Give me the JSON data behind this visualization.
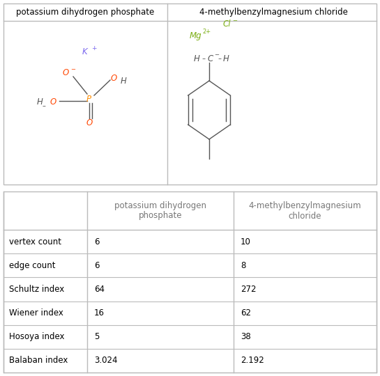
{
  "col1_header": "potassium dihydrogen phosphate",
  "col2_header": "4-methylbenzylmagnesium chloride",
  "table_col1_header": "potassium dihydrogen\nphosphate",
  "table_col2_header": "4-methylbenzylmagnesium\nchloride",
  "rows": [
    {
      "label": "vertex count",
      "val1": "6",
      "val2": "10"
    },
    {
      "label": "edge count",
      "val1": "6",
      "val2": "8"
    },
    {
      "label": "Schultz index",
      "val1": "64",
      "val2": "272"
    },
    {
      "label": "Wiener index",
      "val1": "16",
      "val2": "62"
    },
    {
      "label": "Hosoya index",
      "val1": "5",
      "val2": "38"
    },
    {
      "label": "Balaban index",
      "val1": "3.024",
      "val2": "2.192"
    }
  ],
  "bg_color": "#ffffff",
  "border_color": "#bbbbbb",
  "text_color": "#000000",
  "gray_text": "#555555",
  "K_color": "#7b68ee",
  "P_color": "#ff8c00",
  "O_color": "#ff4500",
  "Cl_color": "#7aad12",
  "Mg_color": "#7aad12",
  "header_fontsize": 8.5,
  "table_fontsize": 8.5,
  "label_fontsize": 8.5,
  "chem_fontsize": 8.5
}
